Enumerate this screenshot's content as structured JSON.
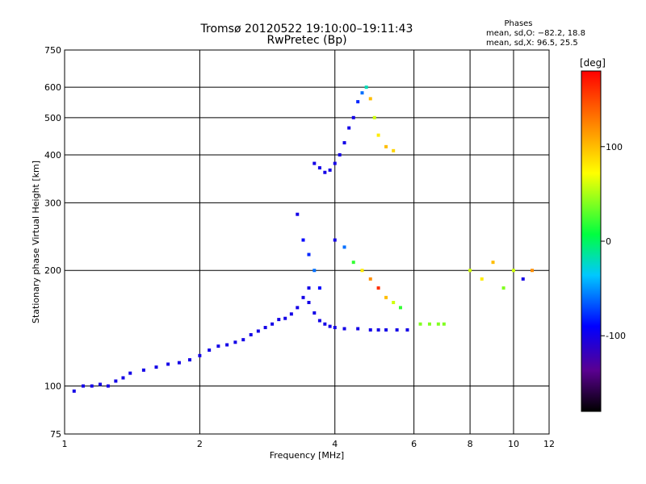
{
  "chart_data": {
    "type": "scatter",
    "title": "Tromsø 20120522 19:10:00–19:11:43",
    "subtitle": "RwPretec (Bp)",
    "xlabel": "Frequency [MHz]",
    "ylabel": "Stationary phase Virtual Height [km]",
    "x_scale": "log",
    "y_scale": "log",
    "xlim": [
      1,
      12
    ],
    "ylim": [
      75,
      750
    ],
    "x_ticks": [
      1,
      2,
      4,
      6,
      8,
      10,
      12
    ],
    "y_ticks": [
      75,
      100,
      200,
      300,
      400,
      500,
      600,
      750
    ],
    "grid": true,
    "phase_box": {
      "title": "Phases",
      "line1": "mean, sd,O: −82.2, 18.8",
      "line2": "mean, sd,X:  96.5, 25.5"
    },
    "colorbar": {
      "label": "[deg]",
      "range": [
        -180,
        180
      ],
      "ticks": [
        100,
        0,
        -100
      ]
    },
    "series": [
      {
        "x": [
          1.05,
          1.1,
          1.15,
          1.2,
          1.25,
          1.3,
          1.35,
          1.4,
          1.5,
          1.6,
          1.7,
          1.8,
          1.9,
          2.0,
          2.1,
          2.2,
          2.3,
          2.4,
          2.5,
          2.6,
          2.7,
          2.8,
          2.9,
          3.0,
          3.1,
          3.2,
          3.3,
          3.4,
          3.5
        ],
        "y": [
          97,
          100,
          100,
          101,
          100,
          103,
          105,
          108,
          110,
          112,
          114,
          115,
          117,
          120,
          124,
          127,
          128,
          130,
          132,
          136,
          139,
          142,
          145,
          149,
          150,
          154,
          160,
          170,
          180
        ],
        "phase": [
          -100,
          -100,
          -100,
          -100,
          -100,
          -100,
          -100,
          -100,
          -100,
          -100,
          -100,
          -100,
          -100,
          -100,
          -100,
          -100,
          -100,
          -100,
          -100,
          -100,
          -100,
          -100,
          -100,
          -100,
          -100,
          -100,
          -100,
          -100,
          -100
        ]
      },
      {
        "x": [
          3.5,
          3.6,
          3.7,
          3.8,
          3.9,
          4.0,
          4.2,
          4.5,
          4.8,
          5.0,
          5.2,
          5.5,
          5.8
        ],
        "y": [
          165,
          155,
          148,
          145,
          143,
          142,
          141,
          141,
          140,
          140,
          140,
          140,
          140
        ],
        "phase": [
          -100,
          -100,
          -100,
          -100,
          -100,
          -100,
          -100,
          -100,
          -100,
          -100,
          -100,
          -100,
          -100
        ]
      },
      {
        "x": [
          6.2,
          6.5,
          6.8,
          7.0
        ],
        "y": [
          145,
          145,
          145,
          145
        ],
        "phase": [
          40,
          40,
          40,
          40
        ]
      },
      {
        "x": [
          3.3,
          3.4,
          3.5,
          3.6,
          3.7
        ],
        "y": [
          280,
          240,
          220,
          200,
          180
        ],
        "phase": [
          -100,
          -90,
          -80,
          -60,
          -90
        ]
      },
      {
        "x": [
          3.6,
          3.7,
          3.8,
          3.9,
          4.0,
          4.1,
          4.2,
          4.3,
          4.4,
          4.5,
          4.6,
          4.7,
          4.8,
          4.9,
          5.0,
          5.2,
          5.4
        ],
        "y": [
          380,
          370,
          360,
          365,
          380,
          400,
          430,
          470,
          500,
          550,
          580,
          600,
          560,
          500,
          450,
          420,
          410
        ],
        "phase": [
          -100,
          -100,
          -100,
          -100,
          -100,
          -100,
          -100,
          -100,
          -100,
          -80,
          -60,
          -20,
          100,
          60,
          80,
          100,
          90
        ]
      },
      {
        "x": [
          4.0,
          4.2,
          4.4,
          4.6,
          4.8,
          5.0,
          5.2,
          5.4,
          5.6
        ],
        "y": [
          240,
          230,
          210,
          200,
          190,
          180,
          170,
          165,
          160
        ],
        "phase": [
          -100,
          -60,
          20,
          80,
          120,
          160,
          100,
          60,
          20
        ]
      },
      {
        "x": [
          8.0,
          8.5,
          9.0,
          9.5,
          10.0,
          10.5,
          11.0
        ],
        "y": [
          200,
          190,
          210,
          180,
          200,
          190,
          200
        ],
        "phase": [
          60,
          80,
          100,
          40,
          60,
          -100,
          120
        ]
      }
    ]
  }
}
